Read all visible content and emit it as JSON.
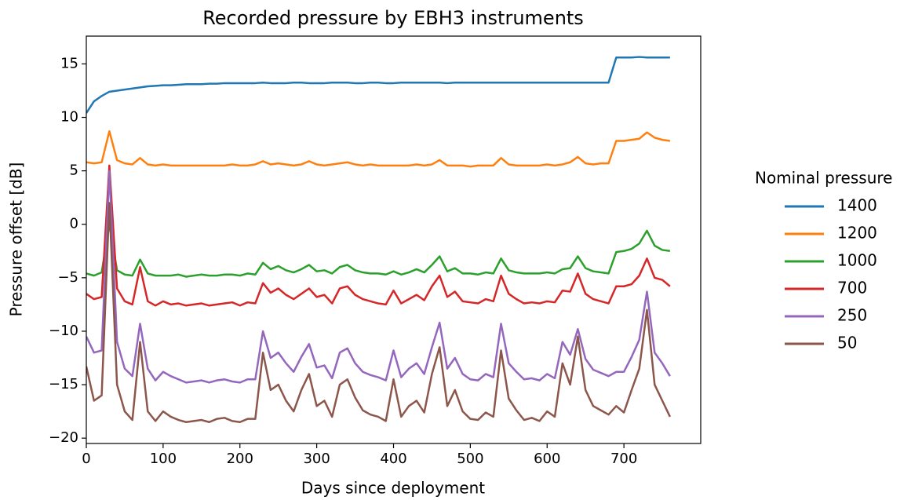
{
  "chart_data": {
    "type": "line",
    "title": "Recorded pressure by EBH3 instruments",
    "x_label": "Days since deployment",
    "y_label": "Pressure offset [dB]",
    "legend_title": "Nominal pressure",
    "legend": "right",
    "xlim": [
      0,
      800
    ],
    "ylim": [
      -20.5,
      17.6
    ],
    "xticks": [
      0,
      100,
      200,
      300,
      400,
      500,
      600,
      700
    ],
    "yticks": [
      {
        "value": -20,
        "label": "−20"
      },
      {
        "value": -15,
        "label": "−15"
      },
      {
        "value": -10,
        "label": "−10"
      },
      {
        "value": -5,
        "label": "−5"
      },
      0,
      5,
      10,
      15
    ],
    "x": [
      0,
      10,
      20,
      30,
      40,
      50,
      60,
      70,
      80,
      90,
      100,
      110,
      120,
      130,
      140,
      150,
      160,
      170,
      180,
      190,
      200,
      210,
      220,
      230,
      240,
      250,
      260,
      270,
      280,
      290,
      300,
      310,
      320,
      330,
      340,
      350,
      360,
      370,
      380,
      390,
      400,
      410,
      420,
      430,
      440,
      450,
      460,
      470,
      480,
      490,
      500,
      510,
      520,
      530,
      540,
      550,
      560,
      570,
      580,
      590,
      600,
      610,
      620,
      630,
      640,
      650,
      660,
      670,
      680,
      690,
      700,
      710,
      720,
      730,
      740,
      750,
      760
    ],
    "series": [
      {
        "name": "1400",
        "color": "#1f77b4",
        "values": [
          10.4,
          11.5,
          12.0,
          12.4,
          12.5,
          12.6,
          12.7,
          12.8,
          12.9,
          12.95,
          13.0,
          13.0,
          13.05,
          13.1,
          13.1,
          13.1,
          13.15,
          13.15,
          13.2,
          13.2,
          13.2,
          13.2,
          13.2,
          13.25,
          13.2,
          13.2,
          13.2,
          13.25,
          13.25,
          13.2,
          13.2,
          13.2,
          13.25,
          13.25,
          13.25,
          13.2,
          13.2,
          13.25,
          13.25,
          13.2,
          13.2,
          13.25,
          13.25,
          13.25,
          13.25,
          13.25,
          13.25,
          13.2,
          13.25,
          13.25,
          13.25,
          13.25,
          13.25,
          13.25,
          13.25,
          13.25,
          13.25,
          13.25,
          13.25,
          13.25,
          13.25,
          13.25,
          13.25,
          13.25,
          13.25,
          13.25,
          13.25,
          13.25,
          13.25,
          15.6,
          15.6,
          15.6,
          15.65,
          15.6,
          15.6,
          15.6,
          15.6
        ]
      },
      {
        "name": "1200",
        "color": "#ff7f0e",
        "values": [
          5.8,
          5.7,
          5.8,
          8.7,
          6.0,
          5.7,
          5.6,
          6.2,
          5.6,
          5.5,
          5.6,
          5.5,
          5.5,
          5.5,
          5.5,
          5.5,
          5.5,
          5.5,
          5.5,
          5.6,
          5.5,
          5.5,
          5.6,
          5.9,
          5.6,
          5.7,
          5.6,
          5.5,
          5.6,
          5.9,
          5.6,
          5.5,
          5.6,
          5.7,
          5.8,
          5.6,
          5.5,
          5.6,
          5.5,
          5.5,
          5.5,
          5.5,
          5.5,
          5.6,
          5.5,
          5.6,
          6.0,
          5.5,
          5.5,
          5.5,
          5.4,
          5.5,
          5.5,
          5.5,
          6.2,
          5.6,
          5.5,
          5.5,
          5.5,
          5.5,
          5.6,
          5.5,
          5.6,
          5.8,
          6.3,
          5.7,
          5.6,
          5.7,
          5.7,
          7.8,
          7.8,
          7.9,
          8.0,
          8.6,
          8.1,
          7.9,
          7.8
        ]
      },
      {
        "name": "1000",
        "color": "#2ca02c",
        "values": [
          -4.6,
          -4.8,
          -4.5,
          0.0,
          -4.3,
          -4.7,
          -4.8,
          -3.3,
          -4.6,
          -4.8,
          -4.8,
          -4.8,
          -4.7,
          -4.9,
          -4.8,
          -4.7,
          -4.8,
          -4.8,
          -4.7,
          -4.7,
          -4.8,
          -4.6,
          -4.7,
          -3.6,
          -4.2,
          -3.9,
          -4.3,
          -4.5,
          -4.2,
          -3.8,
          -4.4,
          -4.3,
          -4.6,
          -4.0,
          -3.8,
          -4.3,
          -4.5,
          -4.6,
          -4.6,
          -4.7,
          -4.4,
          -4.7,
          -4.5,
          -4.2,
          -4.5,
          -3.8,
          -3.0,
          -4.4,
          -4.1,
          -4.6,
          -4.6,
          -4.7,
          -4.5,
          -4.6,
          -3.2,
          -4.3,
          -4.5,
          -4.6,
          -4.6,
          -4.6,
          -4.5,
          -4.6,
          -4.2,
          -4.1,
          -3.0,
          -4.1,
          -4.4,
          -4.5,
          -4.6,
          -2.6,
          -2.5,
          -2.3,
          -1.8,
          -0.6,
          -2.0,
          -2.4,
          -2.5
        ]
      },
      {
        "name": "700",
        "color": "#d62728",
        "values": [
          -6.5,
          -7.0,
          -6.8,
          5.5,
          -6.0,
          -7.2,
          -7.5,
          -4.0,
          -7.2,
          -7.6,
          -7.2,
          -7.5,
          -7.4,
          -7.6,
          -7.5,
          -7.4,
          -7.6,
          -7.5,
          -7.4,
          -7.3,
          -7.6,
          -7.3,
          -7.4,
          -5.5,
          -6.4,
          -6.0,
          -6.6,
          -7.0,
          -6.5,
          -6.0,
          -6.8,
          -6.6,
          -7.4,
          -6.0,
          -5.8,
          -6.6,
          -7.0,
          -7.2,
          -7.4,
          -7.5,
          -6.2,
          -7.4,
          -7.0,
          -6.6,
          -7.1,
          -5.8,
          -4.8,
          -6.8,
          -6.3,
          -7.2,
          -7.3,
          -7.4,
          -7.0,
          -7.2,
          -4.8,
          -6.5,
          -7.0,
          -7.4,
          -7.3,
          -7.4,
          -7.2,
          -7.3,
          -6.2,
          -6.3,
          -4.6,
          -6.5,
          -7.0,
          -7.2,
          -7.4,
          -5.8,
          -5.8,
          -5.6,
          -4.8,
          -3.2,
          -5.0,
          -5.2,
          -5.8
        ]
      },
      {
        "name": "250",
        "color": "#9467bd",
        "values": [
          -10.5,
          -12.0,
          -11.8,
          5.0,
          -11.0,
          -13.5,
          -14.2,
          -9.3,
          -13.5,
          -14.6,
          -13.8,
          -14.2,
          -14.5,
          -14.8,
          -14.7,
          -14.6,
          -14.8,
          -14.6,
          -14.5,
          -14.7,
          -14.8,
          -14.5,
          -14.5,
          -10.0,
          -12.5,
          -12.0,
          -13.0,
          -13.8,
          -12.4,
          -11.2,
          -13.4,
          -13.2,
          -14.4,
          -12.0,
          -11.6,
          -13.0,
          -13.8,
          -14.1,
          -14.3,
          -14.6,
          -11.8,
          -14.3,
          -13.5,
          -13.0,
          -14.0,
          -11.5,
          -9.2,
          -13.5,
          -12.5,
          -14.0,
          -14.5,
          -14.6,
          -14.0,
          -14.3,
          -9.3,
          -13.0,
          -13.8,
          -14.5,
          -14.4,
          -14.6,
          -14.0,
          -14.4,
          -11.0,
          -12.2,
          -9.8,
          -12.6,
          -13.6,
          -13.9,
          -14.2,
          -13.8,
          -13.8,
          -12.4,
          -10.8,
          -6.3,
          -12.0,
          -13.0,
          -14.2
        ]
      },
      {
        "name": "50",
        "color": "#8c564b",
        "values": [
          -13.3,
          -16.5,
          -16.0,
          2.0,
          -15.0,
          -17.5,
          -18.3,
          -11.0,
          -17.5,
          -18.4,
          -17.5,
          -18.0,
          -18.3,
          -18.5,
          -18.4,
          -18.3,
          -18.5,
          -18.2,
          -18.1,
          -18.4,
          -18.5,
          -18.2,
          -18.2,
          -12.0,
          -15.5,
          -15.0,
          -16.5,
          -17.5,
          -15.5,
          -14.0,
          -17.0,
          -16.5,
          -18.0,
          -15.0,
          -14.5,
          -16.2,
          -17.4,
          -17.8,
          -18.0,
          -18.4,
          -14.5,
          -18.0,
          -17.0,
          -16.5,
          -17.6,
          -14.0,
          -11.5,
          -17.0,
          -15.5,
          -17.5,
          -18.2,
          -18.3,
          -17.6,
          -18.0,
          -11.8,
          -16.3,
          -17.4,
          -18.3,
          -18.1,
          -18.4,
          -17.5,
          -18.0,
          -13.0,
          -15.0,
          -10.5,
          -15.5,
          -17.0,
          -17.4,
          -17.8,
          -17.0,
          -17.6,
          -15.5,
          -13.5,
          -8.0,
          -15.0,
          -16.5,
          -18.0
        ]
      }
    ]
  }
}
